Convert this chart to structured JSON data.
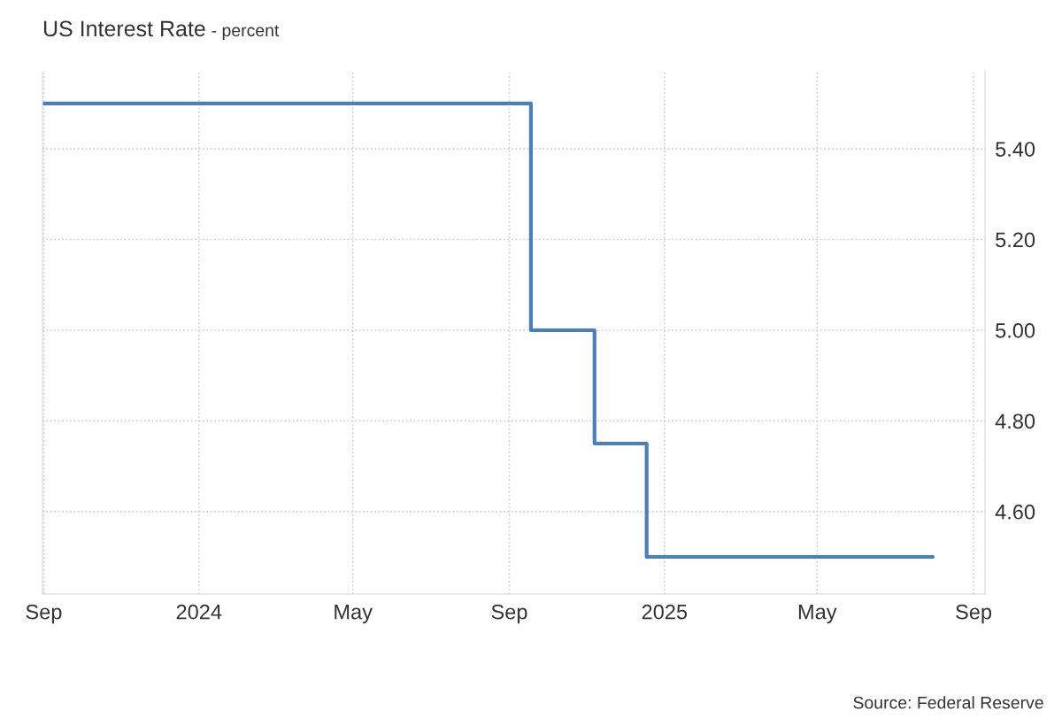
{
  "chart_data": {
    "type": "step",
    "title": "US Interest Rate",
    "subtitle": "- percent",
    "x": [
      "2023-09-01",
      "2024-09-18",
      "2024-11-07",
      "2024-12-18",
      "2025-07-31"
    ],
    "series": [
      {
        "color": "#4a7fbb",
        "values": [
          5.5,
          5.0,
          4.75,
          4.5,
          4.5
        ]
      }
    ],
    "xlim": [
      "2023-08-31",
      "2025-09-10"
    ],
    "xticks": [
      {
        "value": "2023-09-01",
        "label": "Sep"
      },
      {
        "value": "2024-01-01",
        "label": "2024"
      },
      {
        "value": "2024-05-01",
        "label": "May"
      },
      {
        "value": "2024-09-01",
        "label": "Sep"
      },
      {
        "value": "2025-01-01",
        "label": "2025"
      },
      {
        "value": "2025-05-01",
        "label": "May"
      },
      {
        "value": "2025-09-01",
        "label": "Sep"
      }
    ],
    "ylim": [
      4.418,
      5.572
    ],
    "yticks": [
      {
        "value": 4.6,
        "label": "4.60"
      },
      {
        "value": 4.8,
        "label": "4.80"
      },
      {
        "value": 5.0,
        "label": "5.00"
      },
      {
        "value": 5.2,
        "label": "5.20"
      },
      {
        "value": 5.4,
        "label": "5.40"
      }
    ],
    "grid": true,
    "line_style": "solid",
    "marker": "none",
    "annotations": [
      "Source: Federal Reserve"
    ]
  }
}
